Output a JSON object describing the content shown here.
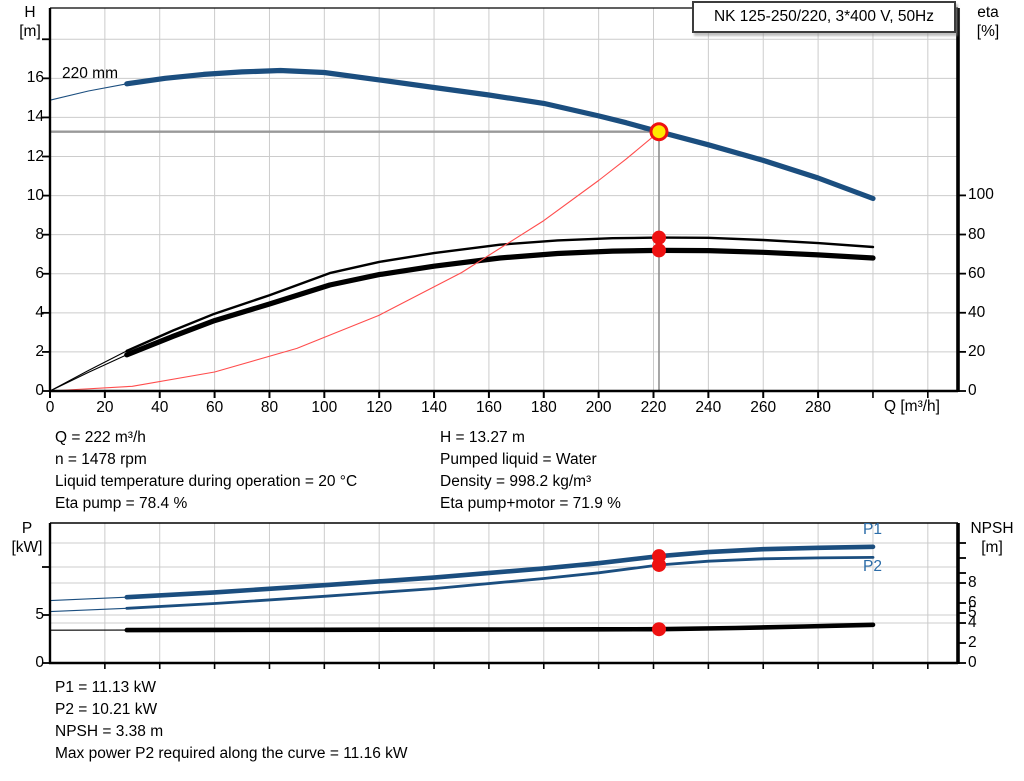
{
  "title_box": {
    "label": "NK 125-250/220, 3*400 V, 50Hz"
  },
  "details_top": {
    "left": [
      "Q = 222 m³/h",
      "n = 1478 rpm",
      "Liquid temperature during operation = 20 °C",
      "Eta pump = 78.4 %"
    ],
    "right": [
      "H = 13.27 m",
      "Pumped liquid = Water",
      "Density = 998.2 kg/m³",
      "Eta pump+motor = 71.9 %"
    ]
  },
  "details_bottom": [
    "P1 = 11.13 kW",
    "P2 = 10.21 kW",
    "NPSH = 3.38 m",
    "Max power P2 required along the curve = 11.16 kW"
  ],
  "colors": {
    "curve_blue": "#1b4e7f",
    "label_blue": "#2b6ca8",
    "marker_red": "#ee1111",
    "op_yellow": "#ffe800",
    "system_red": "#ff4d4d",
    "grid": "#cccccc",
    "crosshair": "#999999"
  },
  "chart_data": [
    {
      "type": "line",
      "title": "NK 125-250/220, 3*400 V, 50Hz",
      "x": {
        "label": "Q [m³/h]",
        "min": 0,
        "max": 331,
        "ticks_labeled": [
          0,
          20,
          40,
          60,
          80,
          100,
          120,
          140,
          160,
          180,
          200,
          220,
          240,
          260,
          280
        ],
        "ticks_unlabeled": [
          300,
          320
        ],
        "grid_step": 20
      },
      "y_left": {
        "name": "H",
        "unit": "[m]",
        "min": 0,
        "max": 19.6,
        "ticks_labeled": [
          0,
          2,
          4,
          6,
          8,
          10,
          12,
          14,
          16
        ],
        "ticks_unlabeled": [
          18
        ],
        "grid": [
          2,
          4,
          6,
          8,
          10,
          12,
          14,
          16,
          18
        ]
      },
      "y_right": {
        "name": "eta",
        "unit": "[%]",
        "min": 0,
        "max": 100,
        "ticks_labeled": [
          0,
          20,
          40,
          60,
          80,
          100
        ],
        "ticks_unlabeled": []
      },
      "series": [
        {
          "name": "pump-curve",
          "label": "220 mm",
          "axis": "left",
          "color": "#1b4e7f",
          "width": 5.2,
          "thin_until": 28,
          "points": [
            [
              0,
              14.88
            ],
            [
              14,
              15.35
            ],
            [
              28,
              15.72
            ],
            [
              42,
              16.0
            ],
            [
              56,
              16.2
            ],
            [
              70,
              16.33
            ],
            [
              84,
              16.4
            ],
            [
              100,
              16.3
            ],
            [
              120,
              15.92
            ],
            [
              140,
              15.53
            ],
            [
              160,
              15.15
            ],
            [
              180,
              14.72
            ],
            [
              200,
              14.08
            ],
            [
              210,
              13.73
            ],
            [
              222,
              13.27
            ],
            [
              240,
              12.6
            ],
            [
              260,
              11.8
            ],
            [
              280,
              10.9
            ],
            [
              300,
              9.85
            ]
          ]
        },
        {
          "name": "eta-pump-curve",
          "label": "",
          "axis": "right",
          "color": "#000000",
          "width": 2.4,
          "thin_until": 28,
          "points": [
            [
              0,
              0
            ],
            [
              14,
              10.5
            ],
            [
              28,
              20.5
            ],
            [
              45,
              31
            ],
            [
              60,
              39.5
            ],
            [
              80,
              49
            ],
            [
              102,
              60.3
            ],
            [
              120,
              66
            ],
            [
              140,
              70.5
            ],
            [
              164,
              74.8
            ],
            [
              185,
              77
            ],
            [
              205,
              78.1
            ],
            [
              222,
              78.4
            ],
            [
              240,
              78.3
            ],
            [
              260,
              77.2
            ],
            [
              280,
              75.6
            ],
            [
              300,
              73.6
            ]
          ]
        },
        {
          "name": "eta-pump-motor-curve",
          "label": "",
          "axis": "right",
          "color": "#000000",
          "width": 5.2,
          "thin_until": 28,
          "points": [
            [
              0,
              0
            ],
            [
              14,
              9.5
            ],
            [
              28,
              18.5
            ],
            [
              45,
              28
            ],
            [
              60,
              36
            ],
            [
              80,
              44.5
            ],
            [
              102,
              54.2
            ],
            [
              120,
              59.5
            ],
            [
              140,
              63.8
            ],
            [
              164,
              68
            ],
            [
              185,
              70.3
            ],
            [
              205,
              71.5
            ],
            [
              222,
              71.9
            ],
            [
              240,
              71.8
            ],
            [
              260,
              70.9
            ],
            [
              280,
              69.6
            ],
            [
              300,
              68.0
            ]
          ]
        },
        {
          "name": "system-curve",
          "label": "",
          "axis": "left",
          "color": "#ff4d4d",
          "width": 1.2,
          "thin_until": 9999,
          "points": [
            [
              0,
              0
            ],
            [
              30,
              0.24
            ],
            [
              60,
              0.97
            ],
            [
              90,
              2.18
            ],
            [
              120,
              3.88
            ],
            [
              150,
              6.06
            ],
            [
              180,
              8.72
            ],
            [
              200,
              10.77
            ],
            [
              210,
              11.87
            ],
            [
              222,
              13.27
            ]
          ]
        }
      ],
      "operating_point": {
        "q": 222,
        "h": 13.27
      },
      "markers": [
        {
          "q": 222,
          "v": 78.4,
          "axis": "right"
        },
        {
          "q": 222,
          "v": 71.9,
          "axis": "right"
        }
      ],
      "crosshair": {
        "h_value": 13.27,
        "q_value": 222
      }
    },
    {
      "type": "line",
      "x": {
        "label": "",
        "min": 0,
        "max": 331,
        "ticks_labeled": [],
        "ticks_unlabeled": [
          20,
          40,
          60,
          80,
          100,
          120,
          140,
          160,
          180,
          200,
          220,
          240,
          260,
          280,
          300,
          320
        ],
        "grid_step": 20
      },
      "y_left": {
        "name": "P",
        "unit": "[kW]",
        "min": 0,
        "max": 14.6,
        "ticks_labeled": [
          0,
          5
        ],
        "ticks_unlabeled": [
          10
        ],
        "grid": [
          5,
          10
        ]
      },
      "y_right": {
        "name": "NPSH",
        "unit": "[m]",
        "min": 0,
        "max": 14,
        "ticks_labeled": [
          0,
          2,
          4,
          5,
          6,
          8
        ],
        "ticks_unlabeled": [
          9,
          10.5,
          12
        ],
        "grid": [
          4,
          8,
          12
        ]
      },
      "series": [
        {
          "name": "p1-curve",
          "label": "P1",
          "axis": "left",
          "color": "#1b4e7f",
          "width": 4.6,
          "thin_until": 28,
          "points": [
            [
              0,
              6.5
            ],
            [
              28,
              6.85
            ],
            [
              60,
              7.35
            ],
            [
              100,
              8.1
            ],
            [
              140,
              8.9
            ],
            [
              180,
              9.85
            ],
            [
              200,
              10.4
            ],
            [
              222,
              11.13
            ],
            [
              240,
              11.55
            ],
            [
              260,
              11.85
            ],
            [
              280,
              12.0
            ],
            [
              300,
              12.1
            ]
          ]
        },
        {
          "name": "p2-curve",
          "label": "P2",
          "axis": "left",
          "color": "#1b4e7f",
          "width": 2.8,
          "thin_until": 28,
          "points": [
            [
              0,
              5.35
            ],
            [
              28,
              5.7
            ],
            [
              60,
              6.2
            ],
            [
              100,
              6.95
            ],
            [
              140,
              7.75
            ],
            [
              180,
              8.8
            ],
            [
              200,
              9.4
            ],
            [
              222,
              10.21
            ],
            [
              240,
              10.6
            ],
            [
              260,
              10.85
            ],
            [
              280,
              10.95
            ],
            [
              300,
              11.0
            ]
          ]
        },
        {
          "name": "npsh-curve",
          "label": "",
          "axis": "right",
          "color": "#000000",
          "width": 4.6,
          "thin_until": 28,
          "points": [
            [
              0,
              3.28
            ],
            [
              28,
              3.29
            ],
            [
              60,
              3.31
            ],
            [
              100,
              3.32
            ],
            [
              150,
              3.34
            ],
            [
              200,
              3.37
            ],
            [
              222,
              3.38
            ],
            [
              250,
              3.5
            ],
            [
              275,
              3.65
            ],
            [
              300,
              3.82
            ]
          ]
        }
      ],
      "markers": [
        {
          "q": 222,
          "v": 11.13,
          "axis": "left"
        },
        {
          "q": 222,
          "v": 10.21,
          "axis": "left"
        },
        {
          "q": 222,
          "v": 3.38,
          "axis": "right"
        }
      ]
    }
  ]
}
